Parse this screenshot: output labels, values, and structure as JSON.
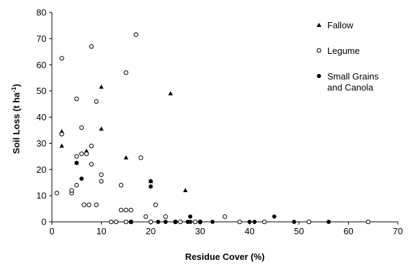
{
  "chart_data": {
    "type": "scatter",
    "xlabel": "Residue Cover (%)",
    "ylabel_main": "Soil Loss (t ha",
    "ylabel_sup": "-1",
    "ylabel_close": ")",
    "xlim": [
      0,
      70
    ],
    "ylim": [
      0,
      80
    ],
    "x_ticks": [
      "0",
      "10",
      "20",
      "30",
      "40",
      "50",
      "60",
      "70"
    ],
    "y_ticks": [
      "0",
      "10",
      "20",
      "30",
      "40",
      "50",
      "60",
      "70",
      "80"
    ],
    "grid": false,
    "legend_position": "top-right",
    "series": [
      {
        "name": "Fallow",
        "marker": "filled-triangle",
        "x": [
          2,
          2,
          5,
          7,
          10,
          10,
          15,
          20,
          24,
          27
        ],
        "y": [
          34.5,
          29,
          22.5,
          27,
          51.5,
          35.5,
          24.5,
          15.5,
          49,
          12
        ]
      },
      {
        "name": "Legume",
        "marker": "open-circle",
        "x": [
          2,
          2,
          1,
          4,
          4,
          5,
          5,
          5,
          6,
          6,
          7,
          8,
          8,
          8,
          9,
          9,
          10,
          10,
          13,
          14,
          14,
          15,
          15,
          16,
          16,
          15,
          17,
          18,
          19,
          20,
          21,
          23,
          25,
          26,
          29,
          30,
          35,
          38,
          43,
          52,
          64,
          12,
          6.5,
          7.5
        ],
        "y": [
          62.5,
          33.5,
          11,
          11,
          12,
          14,
          25,
          47,
          26,
          36,
          26,
          29,
          22,
          67,
          6.5,
          46,
          18,
          15.5,
          0,
          14,
          4.5,
          4.5,
          57,
          4.5,
          0,
          0,
          71.5,
          24.5,
          2,
          0,
          6.5,
          2,
          0,
          0,
          0,
          0,
          2,
          0,
          0,
          0,
          0,
          0,
          6.5,
          6.5
        ]
      },
      {
        "name": "Small Grains and Canola",
        "legend_lines": [
          "Small Grains",
          "and Canola"
        ],
        "marker": "filled-circle",
        "x": [
          5,
          6,
          16,
          20,
          20,
          21.5,
          23,
          25,
          27.5,
          28,
          28,
          30,
          32.5,
          40,
          41,
          45,
          49,
          56
        ],
        "y": [
          22.5,
          16.5,
          0,
          15.5,
          13.5,
          0,
          0,
          0,
          0,
          2,
          0,
          0,
          0,
          0,
          0,
          2,
          0,
          0
        ]
      }
    ]
  }
}
